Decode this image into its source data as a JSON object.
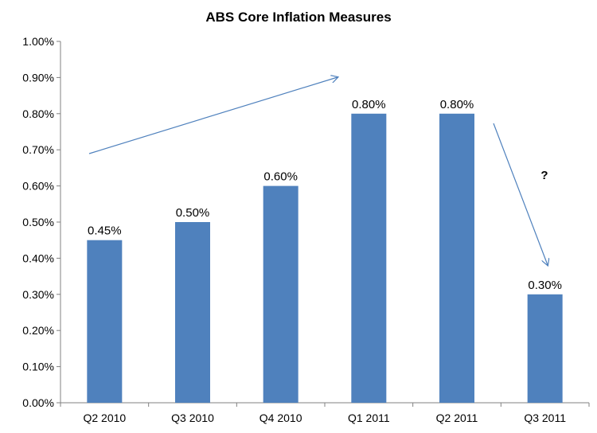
{
  "chart_data": {
    "type": "bar",
    "title": "ABS Core Inflation Measures",
    "categories": [
      "Q2 2010",
      "Q3 2010",
      "Q4 2010",
      "Q1 2011",
      "Q2 2011",
      "Q3 2011"
    ],
    "values": [
      0.45,
      0.5,
      0.6,
      0.8,
      0.8,
      0.3
    ],
    "data_labels": [
      "0.45%",
      "0.50%",
      "0.60%",
      "0.80%",
      "0.80%",
      "0.30%"
    ],
    "ylim": [
      0,
      1.0
    ],
    "yticks": [
      0.0,
      0.1,
      0.2,
      0.3,
      0.4,
      0.5,
      0.6,
      0.7,
      0.8,
      0.9,
      1.0
    ],
    "ytick_labels": [
      "0.00%",
      "0.10%",
      "0.20%",
      "0.30%",
      "0.40%",
      "0.50%",
      "0.60%",
      "0.70%",
      "0.80%",
      "0.90%",
      "1.00%"
    ],
    "bar_color": "#4f81bd",
    "arrow_color": "#4f81bd",
    "grid": false,
    "annotation": "?"
  }
}
